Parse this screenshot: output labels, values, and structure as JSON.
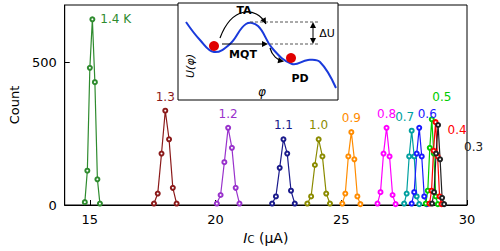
{
  "chart_data": {
    "type": "line",
    "x_label": "IC (μA)",
    "y_label": "Count",
    "xlim": [
      14,
      30
    ],
    "xticks": [
      15,
      20,
      25,
      30
    ],
    "ylim": [
      0,
      700
    ],
    "yticks": [
      0,
      500
    ],
    "marker": "circle",
    "series": [
      {
        "name": "1.4 K",
        "color": "#2e8b2e",
        "x": [
          14.8,
          14.9,
          15.0,
          15.1,
          15.2,
          15.3,
          15.4
        ],
        "values": [
          10,
          120,
          480,
          650,
          430,
          90,
          5
        ]
      },
      {
        "name": "1.3",
        "color": "#8b1a1a",
        "x": [
          17.55,
          17.7,
          17.85,
          18.0,
          18.15,
          18.3,
          18.45
        ],
        "values": [
          5,
          40,
          180,
          330,
          230,
          60,
          5
        ]
      },
      {
        "name": "1.2",
        "color": "#9933cc",
        "x": [
          20.05,
          20.2,
          20.35,
          20.5,
          20.65,
          20.8,
          20.95
        ],
        "values": [
          5,
          35,
          150,
          270,
          200,
          60,
          5
        ]
      },
      {
        "name": "1.1",
        "color": "#1a1a8b",
        "x": [
          22.25,
          22.4,
          22.55,
          22.7,
          22.85,
          23.0,
          23.15
        ],
        "values": [
          5,
          30,
          130,
          230,
          180,
          50,
          5
        ]
      },
      {
        "name": "1.0",
        "color": "#8b8b00",
        "x": [
          23.65,
          23.8,
          23.95,
          24.1,
          24.25,
          24.4,
          24.55
        ],
        "values": [
          5,
          30,
          140,
          230,
          170,
          40,
          5
        ]
      },
      {
        "name": "0.9",
        "color": "#ff8c00",
        "x": [
          25.04,
          25.16,
          25.28,
          25.4,
          25.52,
          25.64,
          25.76
        ],
        "values": [
          5,
          40,
          170,
          255,
          160,
          30,
          3
        ]
      },
      {
        "name": "0.8",
        "color": "#ff00ff",
        "x": [
          26.44,
          26.56,
          26.68,
          26.8,
          26.92,
          27.04,
          27.16
        ],
        "values": [
          5,
          45,
          180,
          270,
          170,
          35,
          3
        ]
      },
      {
        "name": "0.7",
        "color": "#00a0a0",
        "x": [
          27.5,
          27.6,
          27.7,
          27.8,
          27.9,
          28.0,
          28.1
        ],
        "values": [
          5,
          40,
          170,
          260,
          170,
          30,
          3
        ]
      },
      {
        "name": "0.6",
        "color": "#1a1aff",
        "x": [
          27.8,
          27.9,
          28.0,
          28.1,
          28.2,
          28.3,
          28.4
        ],
        "values": [
          5,
          45,
          180,
          270,
          170,
          30,
          3
        ]
      },
      {
        "name": "0.5",
        "color": "#00cc00",
        "x": [
          28.36,
          28.44,
          28.52,
          28.6,
          28.68,
          28.76,
          28.84
        ],
        "values": [
          5,
          50,
          200,
          300,
          180,
          30,
          3
        ]
      },
      {
        "name": "0.4",
        "color": "#ff0000",
        "x": [
          28.51,
          28.59,
          28.67,
          28.75,
          28.83,
          28.91,
          28.99
        ],
        "values": [
          5,
          50,
          190,
          290,
          170,
          30,
          3
        ]
      },
      {
        "name": "0.3",
        "color": "#222222",
        "x": [
          28.61,
          28.69,
          28.77,
          28.85,
          28.93,
          29.01,
          29.09
        ],
        "values": [
          5,
          45,
          180,
          280,
          160,
          25,
          3
        ]
      }
    ],
    "inset": {
      "x_label": "φ",
      "y_label": "U(φ)",
      "annotations": {
        "thermal": "TA",
        "tunneling": "MQT",
        "diffusion": "PD",
        "barrier": "ΔU"
      }
    }
  }
}
